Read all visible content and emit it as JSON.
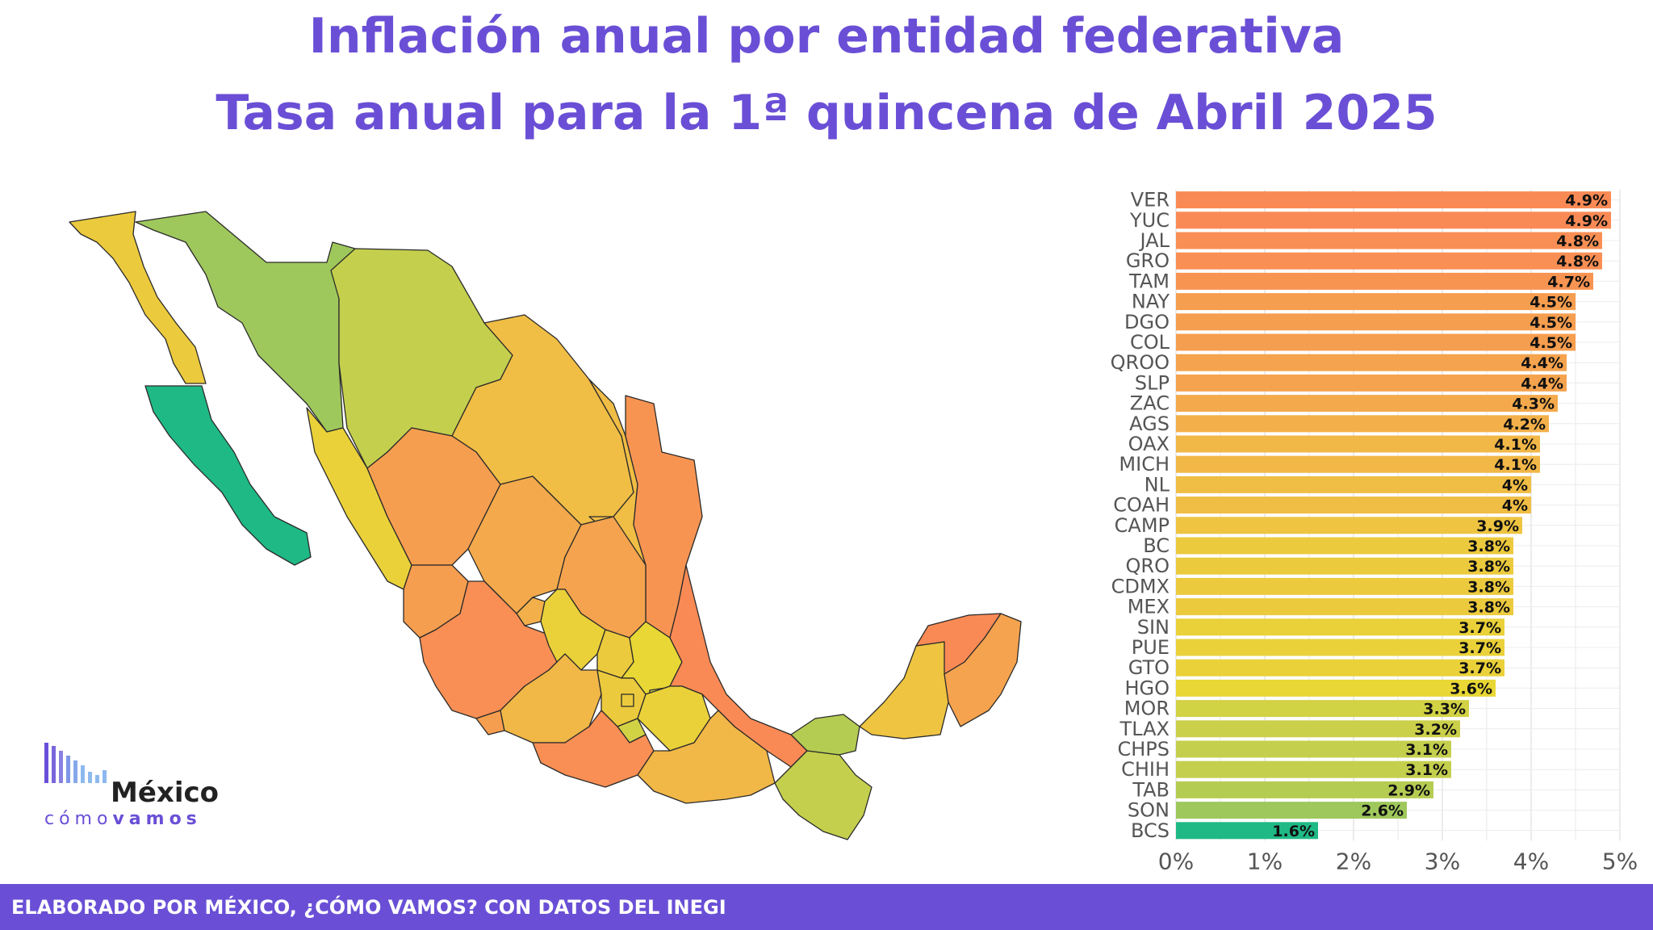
{
  "title": "Inflación anual por entidad federativa",
  "subtitle": "Tasa anual para la 1ª quincena de Abril 2025",
  "footer": "ELABORADO POR MÉXICO, ¿CÓMO VAMOS? CON DATOS DEL INEGI",
  "logo": {
    "name": "México",
    "tag_a": "cómo",
    "tag_b": "vamos"
  },
  "colors": {
    "accent": "#6a4fd6",
    "high": "#fa8a55",
    "mid": "#ebc240",
    "low": "#1fb985"
  },
  "chart_data": {
    "type": "bar",
    "orientation": "horizontal",
    "categories": [
      "VER",
      "YUC",
      "JAL",
      "GRO",
      "TAM",
      "NAY",
      "DGO",
      "COL",
      "QROO",
      "SLP",
      "ZAC",
      "AGS",
      "OAX",
      "MICH",
      "NL",
      "COAH",
      "CAMP",
      "BC",
      "QRO",
      "CDMX",
      "MEX",
      "SIN",
      "PUE",
      "GTO",
      "HGO",
      "MOR",
      "TLAX",
      "CHPS",
      "CHIH",
      "TAB",
      "SON",
      "BCS"
    ],
    "values": [
      4.9,
      4.9,
      4.8,
      4.8,
      4.7,
      4.5,
      4.5,
      4.5,
      4.4,
      4.4,
      4.3,
      4.2,
      4.1,
      4.1,
      4.0,
      4.0,
      3.9,
      3.8,
      3.8,
      3.8,
      3.8,
      3.7,
      3.7,
      3.7,
      3.6,
      3.3,
      3.2,
      3.1,
      3.1,
      2.9,
      2.6,
      1.6
    ],
    "data_labels": [
      "4.9%",
      "4.9%",
      "4.8%",
      "4.8%",
      "4.7%",
      "4.5%",
      "4.5%",
      "4.5%",
      "4.4%",
      "4.4%",
      "4.3%",
      "4.2%",
      "4.1%",
      "4.1%",
      "4%",
      "4%",
      "3.9%",
      "3.8%",
      "3.8%",
      "3.8%",
      "3.8%",
      "3.7%",
      "3.7%",
      "3.7%",
      "3.6%",
      "3.3%",
      "3.2%",
      "3.1%",
      "3.1%",
      "2.9%",
      "2.6%",
      "1.6%"
    ],
    "xlim": [
      0,
      5
    ],
    "xticks": [
      "0%",
      "1%",
      "2%",
      "3%",
      "4%",
      "5%"
    ],
    "grid": "vertical"
  },
  "map_states": [
    {
      "abbr": "BC",
      "value": 3.8
    },
    {
      "abbr": "BCS",
      "value": 1.6
    },
    {
      "abbr": "SON",
      "value": 2.6
    },
    {
      "abbr": "CHIH",
      "value": 3.1
    },
    {
      "abbr": "COAH",
      "value": 4.0
    },
    {
      "abbr": "NL",
      "value": 4.0
    },
    {
      "abbr": "TAM",
      "value": 4.7
    },
    {
      "abbr": "SIN",
      "value": 3.7
    },
    {
      "abbr": "DGO",
      "value": 4.5
    },
    {
      "abbr": "ZAC",
      "value": 4.3
    },
    {
      "abbr": "SLP",
      "value": 4.4
    },
    {
      "abbr": "NAY",
      "value": 4.5
    },
    {
      "abbr": "AGS",
      "value": 4.2
    },
    {
      "abbr": "JAL",
      "value": 4.8
    },
    {
      "abbr": "GTO",
      "value": 3.7
    },
    {
      "abbr": "QRO",
      "value": 3.8
    },
    {
      "abbr": "HGO",
      "value": 3.6
    },
    {
      "abbr": "VER",
      "value": 4.9
    },
    {
      "abbr": "COL",
      "value": 4.5
    },
    {
      "abbr": "MICH",
      "value": 4.1
    },
    {
      "abbr": "MEX",
      "value": 3.8
    },
    {
      "abbr": "CDMX",
      "value": 3.8
    },
    {
      "abbr": "TLAX",
      "value": 3.2
    },
    {
      "abbr": "PUE",
      "value": 3.7
    },
    {
      "abbr": "MOR",
      "value": 3.3
    },
    {
      "abbr": "GRO",
      "value": 4.8
    },
    {
      "abbr": "OAX",
      "value": 4.1
    },
    {
      "abbr": "CHPS",
      "value": 3.1
    },
    {
      "abbr": "TAB",
      "value": 2.9
    },
    {
      "abbr": "CAMP",
      "value": 3.9
    },
    {
      "abbr": "YUC",
      "value": 4.9
    },
    {
      "abbr": "QROO",
      "value": 4.4
    }
  ]
}
